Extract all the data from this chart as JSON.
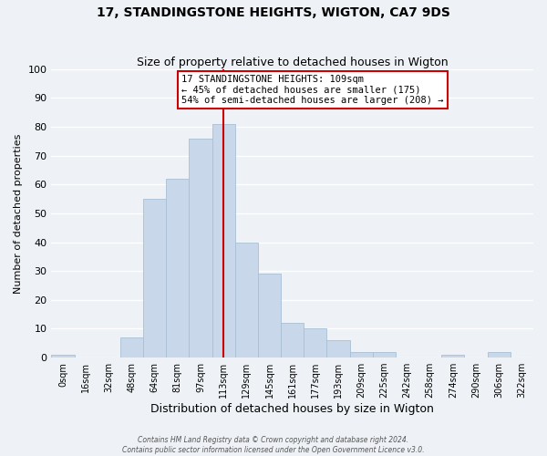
{
  "title": "17, STANDINGSTONE HEIGHTS, WIGTON, CA7 9DS",
  "subtitle": "Size of property relative to detached houses in Wigton",
  "xlabel": "Distribution of detached houses by size in Wigton",
  "ylabel": "Number of detached properties",
  "bar_labels": [
    "0sqm",
    "16sqm",
    "32sqm",
    "48sqm",
    "64sqm",
    "81sqm",
    "97sqm",
    "113sqm",
    "129sqm",
    "145sqm",
    "161sqm",
    "177sqm",
    "193sqm",
    "209sqm",
    "225sqm",
    "242sqm",
    "258sqm",
    "274sqm",
    "290sqm",
    "306sqm",
    "322sqm"
  ],
  "bar_heights": [
    1,
    0,
    0,
    7,
    55,
    62,
    76,
    81,
    40,
    29,
    12,
    10,
    6,
    2,
    2,
    0,
    0,
    1,
    0,
    2,
    0
  ],
  "bar_color": "#c8d8ea",
  "bar_edge_color": "#a8c0d4",
  "vline_x": 7,
  "vline_color": "#cc0000",
  "annotation_line1": "17 STANDINGSTONE HEIGHTS: 109sqm",
  "annotation_line2": "← 45% of detached houses are smaller (175)",
  "annotation_line3": "54% of semi-detached houses are larger (208) →",
  "annotation_box_color": "#ffffff",
  "annotation_box_edge": "#cc0000",
  "ylim": [
    0,
    100
  ],
  "yticks": [
    0,
    10,
    20,
    30,
    40,
    50,
    60,
    70,
    80,
    90,
    100
  ],
  "footer_line1": "Contains HM Land Registry data © Crown copyright and database right 2024.",
  "footer_line2": "Contains public sector information licensed under the Open Government Licence v3.0.",
  "background_color": "#eef2f6",
  "grid_color": "#ffffff"
}
